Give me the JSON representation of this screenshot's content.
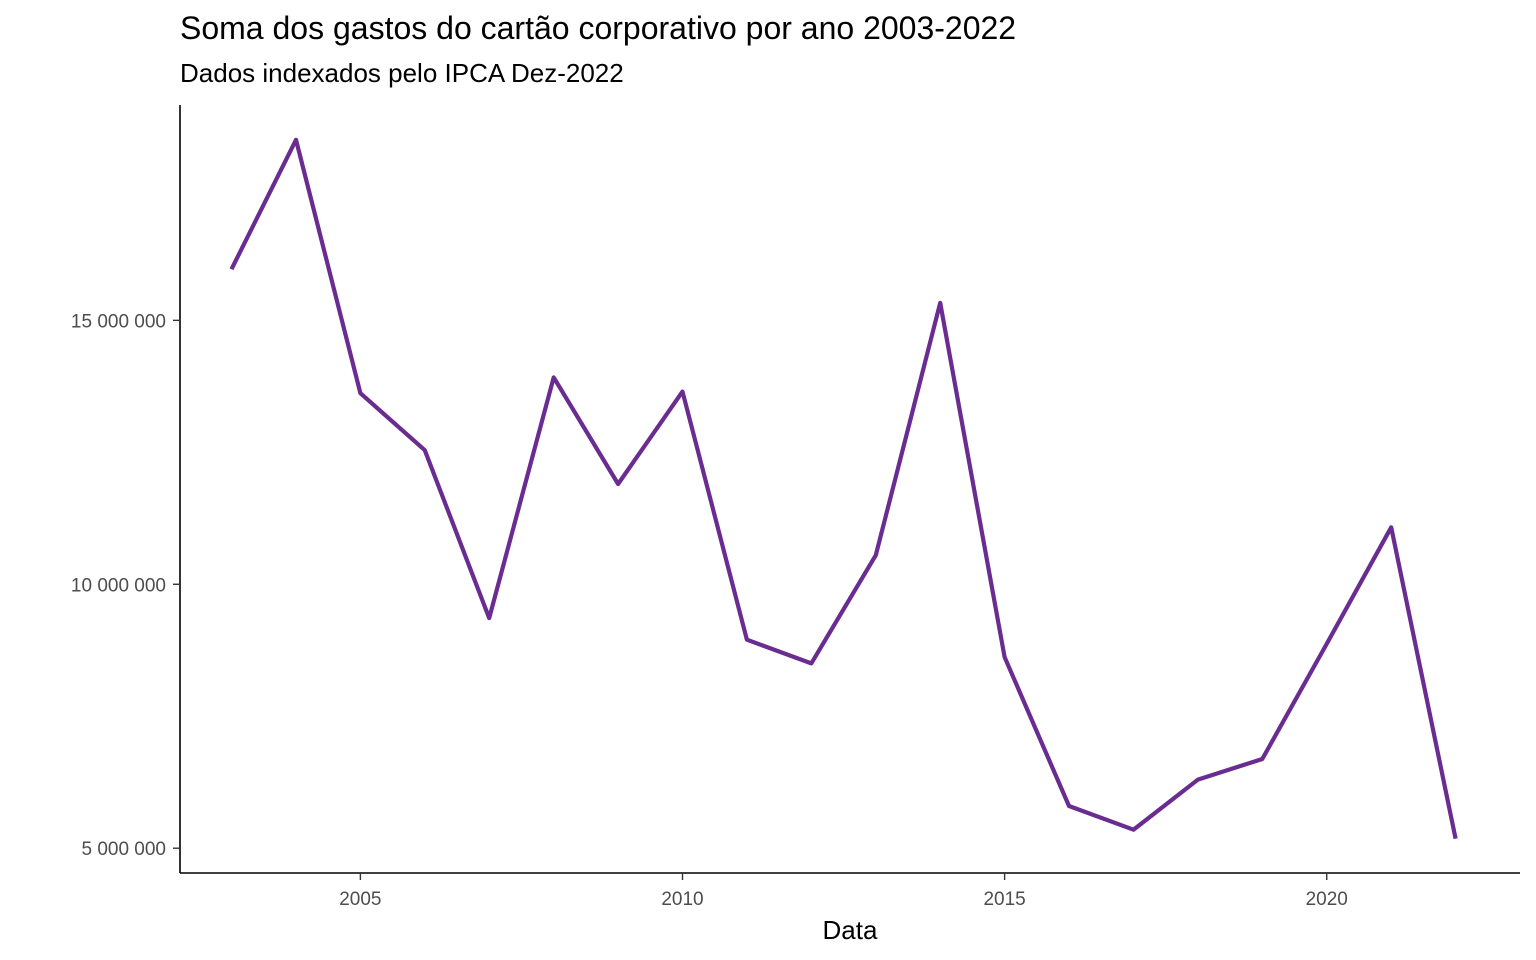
{
  "chart_data": {
    "type": "line",
    "title": "Soma dos gastos do cartão corporativo por ano 2003-2022",
    "subtitle": "Dados indexados pelo IPCA Dez-2022",
    "xlabel": "Data",
    "ylabel": "",
    "x": [
      2003,
      2004,
      2005,
      2006,
      2007,
      2008,
      2009,
      2010,
      2011,
      2012,
      2013,
      2014,
      2015,
      2016,
      2017,
      2018,
      2019,
      2020,
      2021,
      2022
    ],
    "series": [
      {
        "values": [
          15970000,
          18420000,
          13620000,
          12540000,
          9360000,
          13920000,
          11900000,
          13650000,
          8950000,
          8500000,
          10550000,
          15330000,
          8620000,
          5800000,
          5350000,
          6300000,
          6690000,
          8870000,
          11080000,
          5180000
        ],
        "color": "#6a2c91"
      }
    ],
    "xlim": [
      2002.2,
      2023.0
    ],
    "ylim": [
      4530000,
      19080000
    ],
    "xticks": [
      2005,
      2010,
      2015,
      2020
    ],
    "xtick_labels": [
      "2005",
      "2010",
      "2015",
      "2020"
    ],
    "yticks": [
      5000000,
      10000000,
      15000000
    ],
    "ytick_labels": [
      "5 000 000",
      "10 000 000",
      "15 000 000"
    ],
    "grid": false,
    "legend": "none"
  }
}
